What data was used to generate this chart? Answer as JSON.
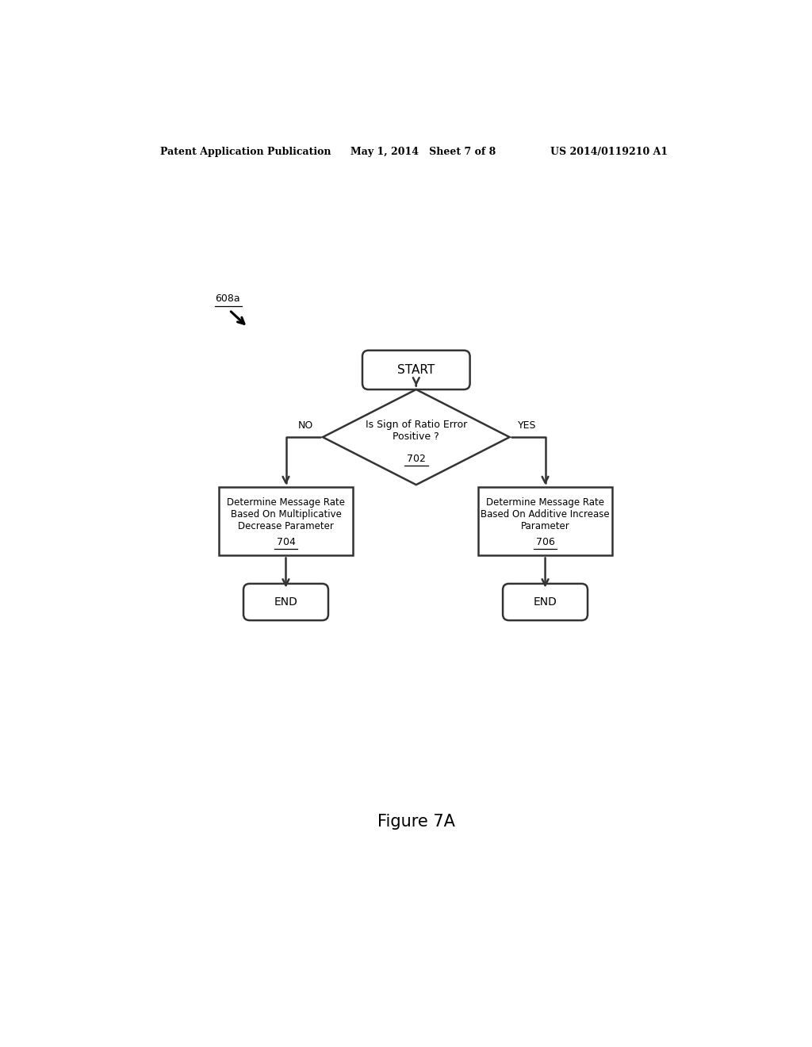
{
  "bg_color": "#ffffff",
  "header_left": "Patent Application Publication",
  "header_mid": "May 1, 2014   Sheet 7 of 8",
  "header_right": "US 2014/0119210 A1",
  "label_608a": "608a",
  "start_text": "START",
  "diamond_text_line1": "Is Sign of Ratio Error",
  "diamond_text_line2": "Positive ?",
  "diamond_label": "702",
  "no_label": "NO",
  "yes_label": "YES",
  "box_left_line1": "Determine Message Rate",
  "box_left_line2": "Based On Multiplicative",
  "box_left_line3": "Decrease Parameter",
  "box_left_label": "704",
  "box_right_line1": "Determine Message Rate",
  "box_right_line2": "Based On Additive Increase",
  "box_right_line3": "Parameter",
  "box_right_label": "706",
  "end_text": "END",
  "figure_caption": "Figure 7A",
  "text_color": "#000000",
  "shape_edge_color": "#333333",
  "shape_linewidth": 1.8
}
